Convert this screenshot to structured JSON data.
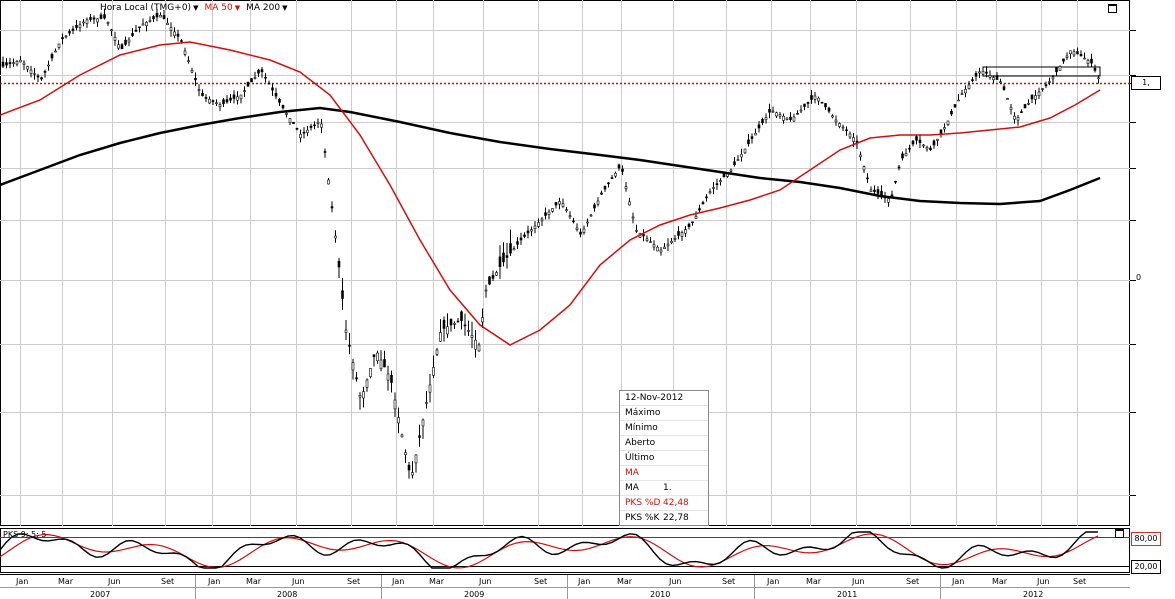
{
  "toolbar": {
    "timezone": "Hora Local (TMG+0)",
    "ma50": "MA 50",
    "ma200": "MA 200"
  },
  "tooltip": {
    "date": "12-Nov-2012",
    "rows": [
      {
        "label": "Máximo",
        "value": ""
      },
      {
        "label": "Mínimo",
        "value": ""
      },
      {
        "label": "Aberto",
        "value": ""
      },
      {
        "label": "Último",
        "value": ""
      },
      {
        "label": "MA",
        "value": ""
      },
      {
        "label": "MA",
        "value": "1."
      },
      {
        "label": "PKS %D",
        "value": "42,48"
      },
      {
        "label": "PKS %K",
        "value": "22,78"
      }
    ]
  },
  "price_axis": {
    "current_label": "1,",
    "partial_label": "0"
  },
  "stoch": {
    "label": "PKS 9; 5; 5",
    "upper": "80,00",
    "lower": "20,00"
  },
  "colors": {
    "candle": "#000000",
    "ma50": "#d01010",
    "ma200": "#000000",
    "grid": "#cccccc",
    "ref": "#c01010"
  },
  "chart_data": {
    "type": "candlestick",
    "title": "",
    "interval": "weekly",
    "x_months": [
      "Jan",
      "Mar",
      "Jun",
      "Set",
      "Jan",
      "Mar",
      "Jun",
      "Set",
      "Jan",
      "Mar",
      "Jun",
      "Set",
      "Jan",
      "Mar",
      "Jun",
      "Set",
      "Jan",
      "Mar",
      "Jun",
      "Set",
      "Jan",
      "Mar",
      "Jun",
      "Set"
    ],
    "x_years": [
      "2007",
      "2008",
      "2009",
      "2010",
      "2011",
      "2012"
    ],
    "series": [
      {
        "name": "MA 50"
      },
      {
        "name": "MA 200"
      },
      {
        "name": "PKS %D",
        "last": 42.48
      },
      {
        "name": "PKS %K",
        "last": 22.78
      }
    ],
    "stoch_levels": [
      80,
      20
    ],
    "grid": true
  }
}
